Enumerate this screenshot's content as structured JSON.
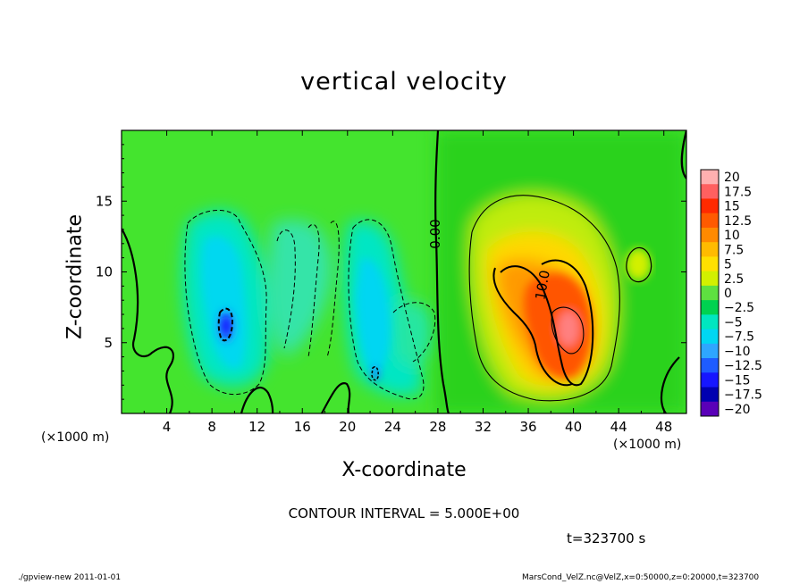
{
  "chart_data": {
    "type": "heatmap",
    "title": "vertical velocity",
    "xlabel": "X-coordinate",
    "ylabel": "Z-coordinate",
    "x_unit_label": "(×1000 m)",
    "x_unit_label_right": "(×1000 m)",
    "x_ticks": [
      4,
      8,
      12,
      16,
      20,
      24,
      28,
      32,
      36,
      40,
      44,
      48
    ],
    "y_ticks": [
      5,
      10,
      15
    ],
    "xlim": [
      0,
      50
    ],
    "ylim": [
      0,
      20
    ],
    "colorbar": {
      "labels": [
        "20",
        "17.5",
        "15",
        "12.5",
        "10",
        "7.5",
        "5",
        "2.5",
        "0",
        "−2.5",
        "−5",
        "−7.5",
        "−10",
        "−12.5",
        "−15",
        "−17.5",
        "−20"
      ],
      "colors": [
        "#ffb0b0",
        "#ff6060",
        "#ff2a00",
        "#ff5a00",
        "#ff8a00",
        "#ffbb00",
        "#ffe000",
        "#d2f000",
        "#5ee040",
        "#00d250",
        "#00e6c0",
        "#00d6f2",
        "#2ea6ff",
        "#1e5cff",
        "#1616ff",
        "#0000b0",
        "#5a00b8"
      ]
    },
    "contour_labels": [
      "0.00",
      "10.0"
    ],
    "contour_interval_text": "CONTOUR INTERVAL = 5.000E+00",
    "time_label": "t=323700 s"
  },
  "footer": {
    "left": "./gpview-new   2011-01-01",
    "right": "MarsCond_VelZ.nc@VelZ,x=0:50000,z=0:20000,t=323700"
  }
}
